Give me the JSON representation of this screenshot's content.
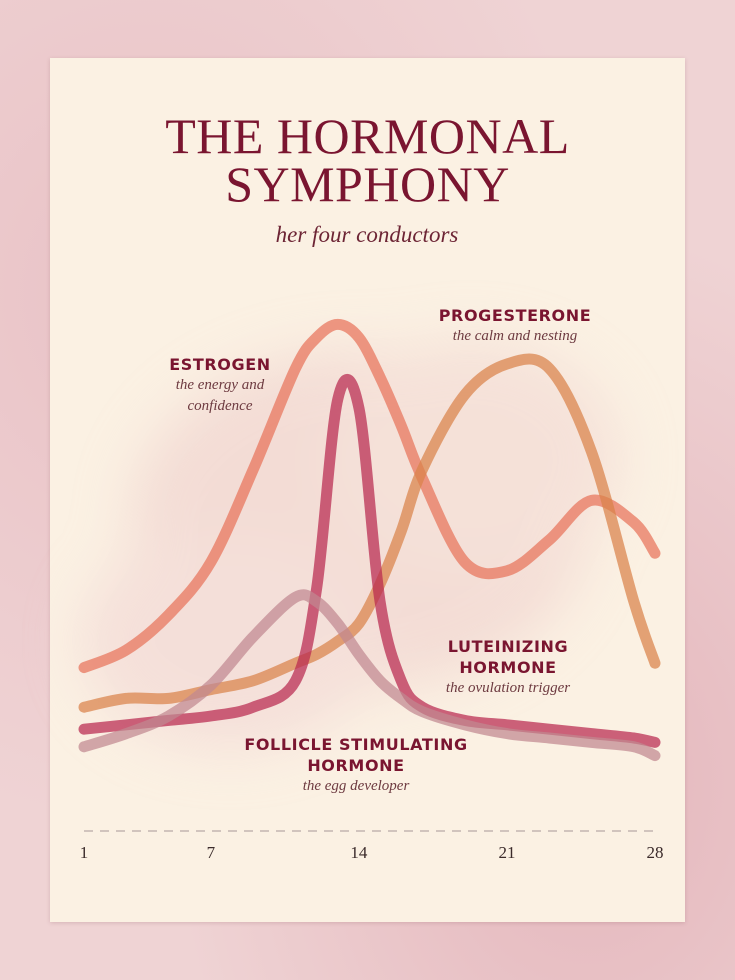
{
  "chart_data": {
    "type": "line",
    "title": "THE HORMONAL SYMPHONY",
    "subtitle": "her four conductors",
    "x": [
      1,
      3,
      5,
      7,
      9,
      11,
      12,
      13,
      14,
      15,
      16,
      17,
      19,
      21,
      23,
      25,
      27,
      28
    ],
    "xlim": [
      1,
      28
    ],
    "xticks": [
      1,
      7,
      14,
      21,
      28
    ],
    "ylim": [
      0,
      100
    ],
    "series": [
      {
        "name": "ESTROGEN",
        "description": "the energy and confidence",
        "color": "#e8735a",
        "values": [
          21,
          25,
          33,
          45,
          66,
          89,
          96,
          99,
          96,
          87,
          76,
          64,
          45,
          43,
          50,
          59,
          54,
          47
        ]
      },
      {
        "name": "PROGESTERONE",
        "description": "the calm and nesting",
        "color": "#d9824a",
        "values": [
          12,
          14,
          14,
          16,
          18,
          22,
          24,
          27,
          31,
          40,
          52,
          66,
          83,
          90,
          89,
          70,
          36,
          22
        ]
      },
      {
        "name": "LUTEINIZING HORMONE",
        "description": "the ovulation trigger",
        "color": "#b8284f",
        "values": [
          7,
          8,
          9,
          10,
          12,
          18,
          39,
          82,
          80,
          36,
          18,
          12,
          9,
          8,
          7,
          6,
          5,
          4
        ]
      },
      {
        "name": "FOLLICLE STIMULATING HORMONE",
        "description": "the egg developer",
        "color": "#c08890",
        "values": [
          3,
          6,
          10,
          17,
          28,
          37,
          36,
          31,
          24,
          18,
          14,
          11,
          8,
          6,
          5,
          4,
          3,
          1
        ]
      }
    ]
  }
}
